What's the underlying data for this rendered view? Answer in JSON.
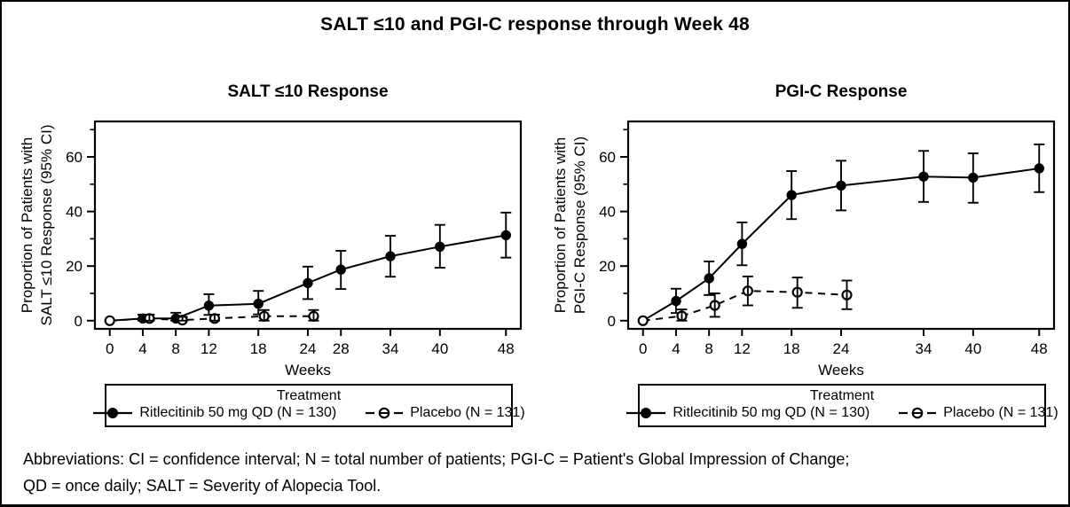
{
  "figure": {
    "title": "SALT ≤10 and PGI-C response through Week 48"
  },
  "colors": {
    "foreground": "#000000",
    "background": "#ffffff"
  },
  "legend": {
    "title": "Treatment",
    "items": [
      {
        "label": "Ritlecitinib 50 mg QD (N = 130)",
        "marker": "filled-circle-solid-line"
      },
      {
        "label": "Placebo (N = 131)",
        "marker": "open-circle-dashed-line"
      }
    ]
  },
  "footnote": {
    "lines": [
      "Abbreviations: CI = confidence interval; N = total number of patients; PGI-C = Patient's Global Impression of Change;",
      "QD = once daily; SALT = Severity of Alopecia Tool."
    ]
  },
  "chart_data": [
    {
      "type": "line",
      "title": "SALT ≤10 Response",
      "xlabel": "Weeks",
      "ylabel_lines": [
        "Proportion of Patients with",
        "SALT ≤10 Response (95% CI)"
      ],
      "xlim": [
        -1.8,
        49.8
      ],
      "ylim": [
        -3,
        73
      ],
      "xticks": [
        0,
        4,
        8,
        12,
        18,
        24,
        28,
        34,
        40,
        48
      ],
      "yticks_major": [
        0,
        20,
        40,
        60
      ],
      "yticks_minor": [
        10,
        30,
        50,
        70
      ],
      "grid": false,
      "legend_position": "below",
      "series": [
        {
          "id": "ritlecitinib",
          "name": "Ritlecitinib 50 mg QD (N = 130)",
          "style": "solid",
          "marker": "filled-circle",
          "points": [
            {
              "x": 0,
              "y": 0,
              "lo": 0,
              "hi": 0
            },
            {
              "x": 4,
              "y": 0.8,
              "lo": 0,
              "hi": 2.2
            },
            {
              "x": 8,
              "y": 0.8,
              "lo": 0,
              "hi": 2.9
            },
            {
              "x": 12,
              "y": 5.5,
              "lo": 2.1,
              "hi": 9.7
            },
            {
              "x": 18,
              "y": 6.2,
              "lo": 2.3,
              "hi": 10.9
            },
            {
              "x": 24,
              "y": 13.8,
              "lo": 7.9,
              "hi": 19.8
            },
            {
              "x": 28,
              "y": 18.7,
              "lo": 11.6,
              "hi": 25.6
            },
            {
              "x": 34,
              "y": 23.6,
              "lo": 16.1,
              "hi": 31.1
            },
            {
              "x": 40,
              "y": 27.1,
              "lo": 19.4,
              "hi": 35.1
            },
            {
              "x": 48,
              "y": 31.3,
              "lo": 23.1,
              "hi": 39.6
            }
          ]
        },
        {
          "id": "placebo",
          "name": "Placebo (N = 131)",
          "style": "dashed",
          "marker": "open-circle",
          "points": [
            {
              "x": 0,
              "y": 0,
              "lo": 0,
              "hi": 0
            },
            {
              "x": 4.8,
              "y": 0.8,
              "lo": 0,
              "hi": 2.2
            },
            {
              "x": 8.8,
              "y": 0.2,
              "lo": 0,
              "hi": 1.4
            },
            {
              "x": 12.7,
              "y": 0.8,
              "lo": 0,
              "hi": 2.2
            },
            {
              "x": 18.7,
              "y": 1.6,
              "lo": 0,
              "hi": 3.9
            },
            {
              "x": 24.7,
              "y": 1.6,
              "lo": 0,
              "hi": 3.9
            }
          ]
        }
      ]
    },
    {
      "type": "line",
      "title": "PGI-C Response",
      "xlabel": "Weeks",
      "ylabel_lines": [
        "Proportion of Patients with",
        "PGI-C Response (95% CI)"
      ],
      "xlim": [
        -1.8,
        49.8
      ],
      "ylim": [
        -3,
        73
      ],
      "xticks": [
        0,
        4,
        8,
        12,
        18,
        24,
        34,
        40,
        48
      ],
      "yticks_major": [
        0,
        20,
        40,
        60
      ],
      "yticks_minor": [
        10,
        30,
        50,
        70
      ],
      "grid": false,
      "legend_position": "below",
      "series": [
        {
          "id": "ritlecitinib",
          "name": "Ritlecitinib 50 mg QD (N = 130)",
          "style": "solid",
          "marker": "filled-circle",
          "points": [
            {
              "x": 0,
              "y": 0,
              "lo": 0,
              "hi": 0
            },
            {
              "x": 4,
              "y": 7.2,
              "lo": 2.8,
              "hi": 11.7
            },
            {
              "x": 8,
              "y": 15.5,
              "lo": 9.4,
              "hi": 21.7
            },
            {
              "x": 12,
              "y": 28.1,
              "lo": 20.3,
              "hi": 36.0
            },
            {
              "x": 18,
              "y": 46.0,
              "lo": 37.2,
              "hi": 54.8
            },
            {
              "x": 24,
              "y": 49.5,
              "lo": 40.4,
              "hi": 58.6
            },
            {
              "x": 34,
              "y": 52.8,
              "lo": 43.5,
              "hi": 62.2
            },
            {
              "x": 40,
              "y": 52.4,
              "lo": 43.2,
              "hi": 61.3
            },
            {
              "x": 48,
              "y": 55.8,
              "lo": 47.1,
              "hi": 64.6
            }
          ]
        },
        {
          "id": "placebo",
          "name": "Placebo (N = 131)",
          "style": "dashed",
          "marker": "open-circle",
          "points": [
            {
              "x": 0,
              "y": 0,
              "lo": 0,
              "hi": 0
            },
            {
              "x": 4.7,
              "y": 1.7,
              "lo": 0,
              "hi": 4.1
            },
            {
              "x": 8.7,
              "y": 5.6,
              "lo": 1.4,
              "hi": 10.0
            },
            {
              "x": 12.7,
              "y": 10.9,
              "lo": 5.6,
              "hi": 16.2
            },
            {
              "x": 18.7,
              "y": 10.4,
              "lo": 4.7,
              "hi": 15.8
            },
            {
              "x": 24.7,
              "y": 9.4,
              "lo": 4.2,
              "hi": 14.7
            }
          ]
        }
      ]
    }
  ]
}
